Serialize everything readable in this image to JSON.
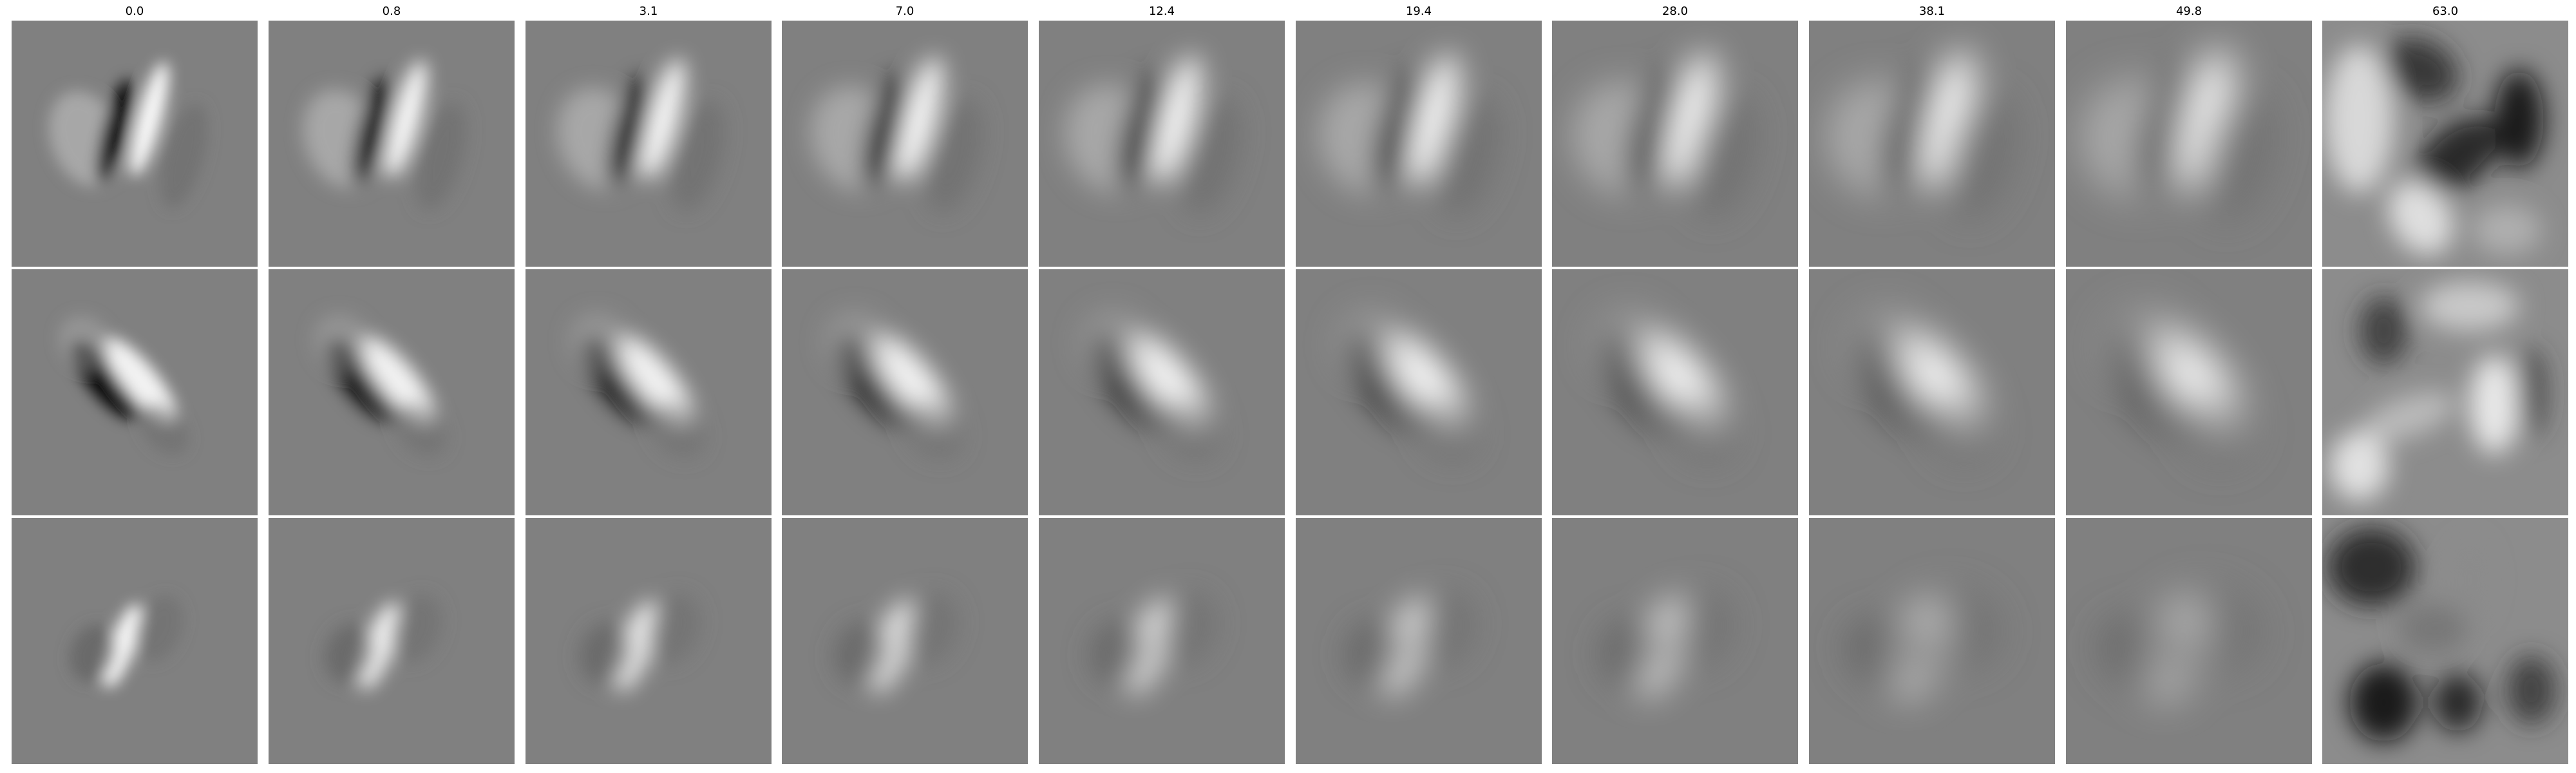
{
  "figure": {
    "column_titles": [
      "0.0",
      "0.8",
      "3.1",
      "7.0",
      "12.4",
      "19.4",
      "28.0",
      "38.1",
      "49.8",
      "63.0"
    ],
    "background_gray": "#808080",
    "grid": {
      "rows": 3,
      "cols": 10
    }
  }
}
